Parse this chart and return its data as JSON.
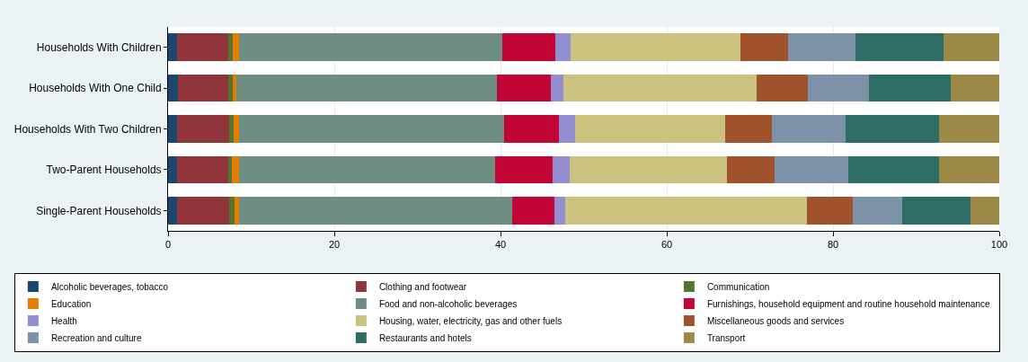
{
  "chart_data": {
    "type": "bar",
    "orientation": "horizontal",
    "stacked": true,
    "categories": [
      "Households With Children",
      "Households With One Child",
      "Households With Two Children",
      "Two-Parent Households",
      "Single-Parent Households"
    ],
    "series": [
      {
        "name": "Alcoholic beverages, tobacco",
        "color": "#1a476f",
        "values": [
          1.1,
          1.2,
          1.1,
          1.1,
          1.1
        ]
      },
      {
        "name": "Clothing and footwear",
        "color": "#90353b",
        "values": [
          6.1,
          6.0,
          6.3,
          6.1,
          6.2
        ]
      },
      {
        "name": "Communication",
        "color": "#55752f",
        "values": [
          0.6,
          0.6,
          0.5,
          0.5,
          0.7
        ]
      },
      {
        "name": "Education",
        "color": "#e37e00",
        "values": [
          0.7,
          0.4,
          0.6,
          0.8,
          0.5
        ]
      },
      {
        "name": "Food and non-alcoholic beverages",
        "color": "#6e8e84",
        "values": [
          31.7,
          31.4,
          31.9,
          30.8,
          32.9
        ]
      },
      {
        "name": "Furnishings, household equipment and routine household maintenance",
        "color": "#c10534",
        "values": [
          6.4,
          6.4,
          6.6,
          7.0,
          5.1
        ]
      },
      {
        "name": "Health",
        "color": "#938dd2",
        "values": [
          1.8,
          1.6,
          2.0,
          2.0,
          1.3
        ]
      },
      {
        "name": "Housing, water, electricity, gas and other fuels",
        "color": "#cac27e",
        "values": [
          20.5,
          23.2,
          18.0,
          18.9,
          29.1
        ]
      },
      {
        "name": "Miscellaneous goods and services",
        "color": "#a0522d",
        "values": [
          5.7,
          6.2,
          5.6,
          5.8,
          5.5
        ]
      },
      {
        "name": "Recreation and culture",
        "color": "#7b92a8",
        "values": [
          8.1,
          7.3,
          8.9,
          8.8,
          5.9
        ]
      },
      {
        "name": "Restaurants and hotels",
        "color": "#2d6d66",
        "values": [
          10.6,
          9.9,
          11.3,
          11.0,
          8.2
        ]
      },
      {
        "name": "Transport",
        "color": "#9c8847",
        "values": [
          6.7,
          5.8,
          7.2,
          7.2,
          3.5
        ]
      }
    ],
    "xlim": [
      0,
      100
    ],
    "xticks": [
      0,
      20,
      40,
      60,
      80,
      100
    ],
    "grid": "x",
    "legend": "bottom"
  }
}
